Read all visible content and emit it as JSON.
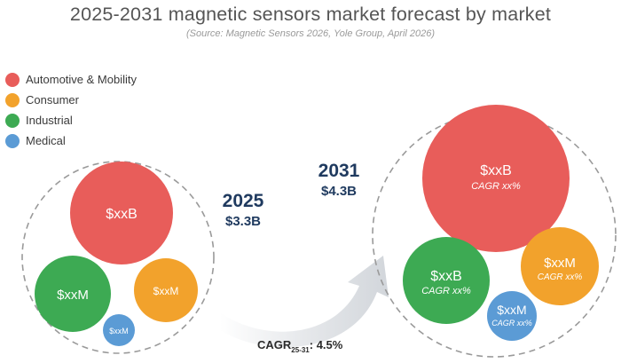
{
  "chart_data": {
    "type": "bubble",
    "title": "2025-2031 magnetic sensors market forecast by market",
    "subtitle": "(Source: Magnetic Sensors 2026, Yole Group, April 2026)",
    "legend": [
      {
        "name": "Automotive & Mobility",
        "color": "#e85d5a"
      },
      {
        "name": "Consumer",
        "color": "#f2a22c"
      },
      {
        "name": "Industrial",
        "color": "#3daa53"
      },
      {
        "name": "Medical",
        "color": "#5b9bd5"
      }
    ],
    "years": [
      {
        "year": "2025",
        "total": "$3.3B",
        "bubbles": [
          {
            "segment": "Automotive & Mobility",
            "label": "$xxB",
            "cagr": ""
          },
          {
            "segment": "Industrial",
            "label": "$xxM",
            "cagr": ""
          },
          {
            "segment": "Consumer",
            "label": "$xxM",
            "cagr": ""
          },
          {
            "segment": "Medical",
            "label": "$xxM",
            "cagr": ""
          }
        ]
      },
      {
        "year": "2031",
        "total": "$4.3B",
        "bubbles": [
          {
            "segment": "Automotive & Mobility",
            "label": "$xxB",
            "cagr": "CAGR xx%"
          },
          {
            "segment": "Industrial",
            "label": "$xxB",
            "cagr": "CAGR xx%"
          },
          {
            "segment": "Consumer",
            "label": "$xxM",
            "cagr": "CAGR xx%"
          },
          {
            "segment": "Medical",
            "label": "$xxM",
            "cagr": "CAGR xx%"
          }
        ]
      }
    ],
    "cagr": {
      "prefix": "CAGR",
      "subscript": "25-31",
      "value": ": 4.5%"
    }
  }
}
